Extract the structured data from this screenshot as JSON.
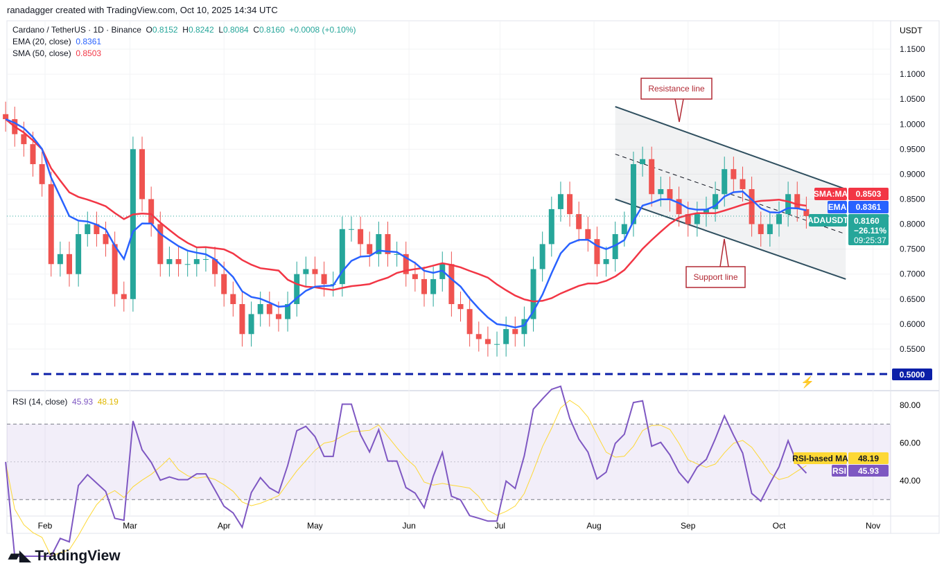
{
  "credit": "ranadagger created with TradingView.com, Oct 10, 2025 14:34 UTC",
  "legend": {
    "symbol": "Cardano / TetherUS · 1D · Binance",
    "o_label": "O",
    "o": "0.8152",
    "h_label": "H",
    "h": "0.8242",
    "l_label": "L",
    "l": "0.8084",
    "c_label": "C",
    "c": "0.8160",
    "change": "+0.0008 (+0.10%)",
    "ema_label": "EMA (20, close)",
    "ema": "0.8361",
    "sma_label": "SMA (50, close)",
    "sma": "0.8503",
    "rsi_label": "RSI (14, close)",
    "rsi": "45.93",
    "rsi_ma": "48.19"
  },
  "currency": "USDT",
  "badges": {
    "sma_label": "SMA:MA",
    "sma": "0.8503",
    "ema_label": "EMA",
    "ema": "0.8361",
    "sym_label": "ADAUSDT",
    "price": "0.8160",
    "pct": "−26.11%",
    "countdown": "09:25:37",
    "support_price": "0.5000",
    "rsi_ma_label": "RSI-based MA",
    "rsi_ma": "48.19",
    "rsi_label": "RSI",
    "rsi": "45.93"
  },
  "logo": "TradingView",
  "colors": {
    "up": "#26a69a",
    "down": "#ef5350",
    "ema": "#2962ff",
    "sma": "#f23645",
    "rsi": "#7e57c2",
    "rsi_ma": "#fdd835",
    "level": "#0b1fa8"
  },
  "chart_data": {
    "type": "candlestick",
    "price_ticks": [
      "1.1500",
      "1.1000",
      "1.0500",
      "1.0000",
      "0.9500",
      "0.9000",
      "0.8500",
      "0.8000",
      "0.7500",
      "0.7000",
      "0.6500",
      "0.6000",
      "0.5500"
    ],
    "ylim": [
      0.5,
      1.15
    ],
    "rsi_ticks": [
      "80.00",
      "60.00",
      "40.00"
    ],
    "rsi_bands": [
      30,
      70
    ],
    "x_ticks": [
      "Feb",
      "Mar",
      "Apr",
      "May",
      "Jun",
      "Jul",
      "Aug",
      "Sep",
      "Oct",
      "Nov"
    ],
    "start_date": "2025-01-19",
    "step_days": 3,
    "closes": [
      1.01,
      0.98,
      0.96,
      0.92,
      0.88,
      0.72,
      0.74,
      0.7,
      0.78,
      0.8,
      0.78,
      0.76,
      0.66,
      0.65,
      0.95,
      0.85,
      0.8,
      0.72,
      0.73,
      0.72,
      0.72,
      0.73,
      0.73,
      0.7,
      0.66,
      0.64,
      0.58,
      0.62,
      0.64,
      0.62,
      0.61,
      0.64,
      0.7,
      0.71,
      0.7,
      0.68,
      0.68,
      0.79,
      0.79,
      0.76,
      0.74,
      0.78,
      0.74,
      0.74,
      0.7,
      0.69,
      0.66,
      0.69,
      0.72,
      0.64,
      0.63,
      0.58,
      0.57,
      0.56,
      0.56,
      0.59,
      0.58,
      0.61,
      0.71,
      0.76,
      0.83,
      0.86,
      0.82,
      0.79,
      0.77,
      0.72,
      0.73,
      0.78,
      0.8,
      0.92,
      0.93,
      0.86,
      0.87,
      0.85,
      0.82,
      0.8,
      0.82,
      0.83,
      0.86,
      0.91,
      0.89,
      0.87,
      0.8,
      0.78,
      0.8,
      0.82,
      0.86,
      0.83,
      0.816
    ],
    "horizontal_level": 0.5,
    "channel": {
      "resistance": [
        [
          "2025-08-08",
          1.035
        ],
        [
          "2025-10-23",
          0.87
        ]
      ],
      "middle": [
        [
          "2025-08-08",
          0.94
        ],
        [
          "2025-10-23",
          0.78
        ]
      ],
      "support": [
        [
          "2025-08-08",
          0.85
        ],
        [
          "2025-10-23",
          0.69
        ]
      ]
    },
    "annotations": [
      {
        "text": "Resistance line"
      },
      {
        "text": "Support line"
      }
    ]
  }
}
